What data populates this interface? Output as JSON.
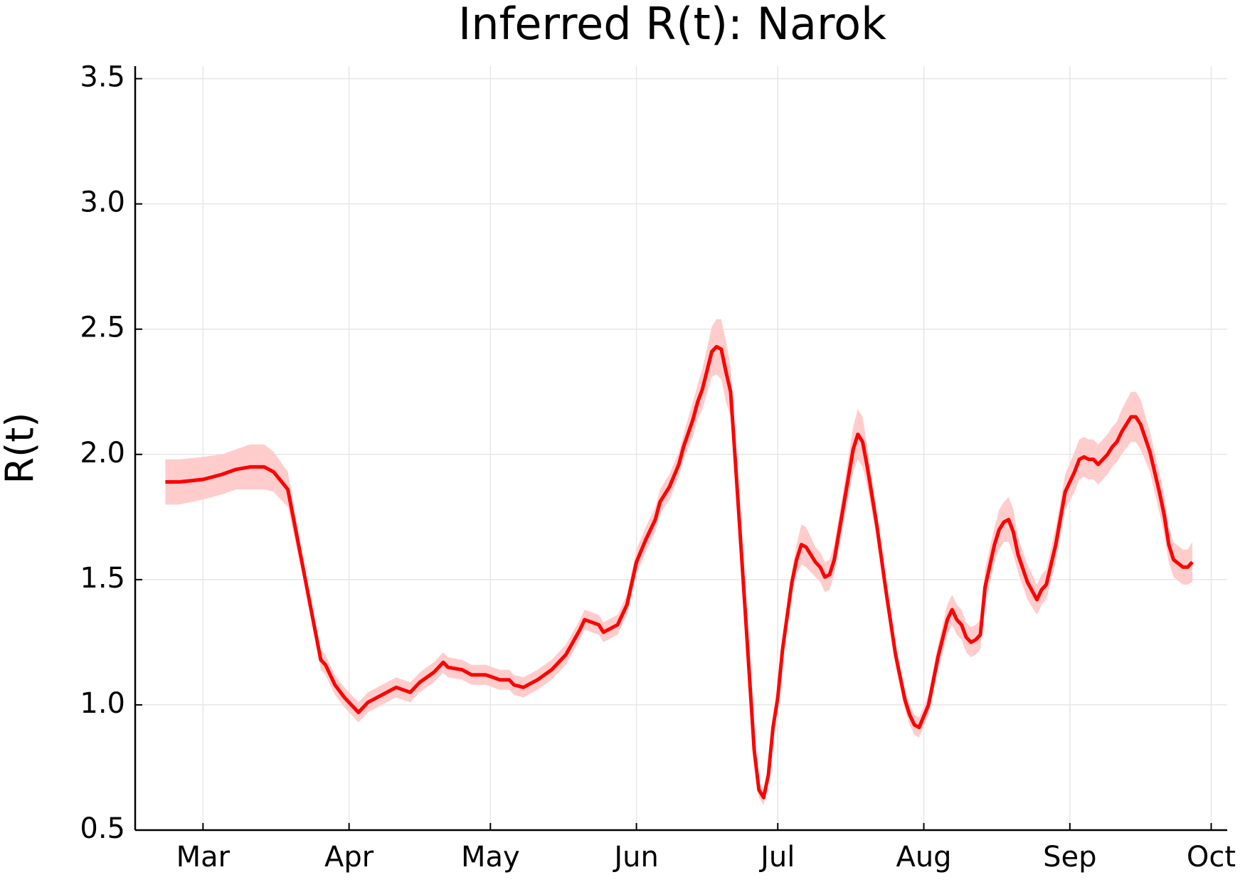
{
  "chart_data": {
    "type": "line-band",
    "title": "Inferred R(t): Narok",
    "y_label": "R(t)",
    "color": "#ff0000",
    "band_color": "#ffcccc",
    "grid": true,
    "xlim": [
      -14.4,
      217.4
    ],
    "ylim": [
      0.5,
      3.55
    ],
    "xticks": [
      {
        "value": 0,
        "label": "Mar"
      },
      {
        "value": 31,
        "label": "Apr"
      },
      {
        "value": 61,
        "label": "May"
      },
      {
        "value": 92,
        "label": "Jun"
      },
      {
        "value": 122,
        "label": "Jul"
      },
      {
        "value": 153,
        "label": "Aug"
      },
      {
        "value": 184,
        "label": "Sep"
      },
      {
        "value": 214,
        "label": "Oct"
      }
    ],
    "yticks": [
      0.5,
      {
        "value": 1,
        "label": "1.0"
      },
      1.5,
      {
        "value": 2,
        "label": "2.0"
      },
      2.5,
      {
        "value": 3,
        "label": "3.0"
      },
      3.5
    ],
    "x": [
      -8,
      -5,
      0,
      4,
      7,
      10,
      13,
      15,
      18,
      21,
      25,
      26,
      28,
      30,
      32,
      33,
      35,
      38,
      41,
      44,
      46,
      49,
      51,
      52,
      55,
      57,
      60,
      63,
      65,
      66,
      68,
      71,
      74,
      77,
      80,
      81,
      84,
      85,
      88,
      90,
      92,
      94,
      96,
      97,
      99,
      101,
      102,
      104,
      105,
      106,
      108,
      109,
      110,
      111,
      112,
      113,
      115,
      117,
      118,
      119,
      120,
      121,
      122,
      123,
      125,
      126,
      127,
      128,
      130,
      131,
      132,
      133,
      134,
      136,
      138,
      139,
      140,
      141,
      143,
      145,
      147,
      149,
      150,
      151,
      152,
      154,
      156,
      158,
      159,
      160,
      161,
      162,
      163,
      164,
      165,
      166,
      168,
      169,
      170,
      171,
      172,
      173,
      175,
      177,
      178,
      179,
      181,
      183,
      185,
      186,
      187,
      188,
      189,
      190,
      191,
      192,
      193,
      194,
      195,
      197,
      198,
      199,
      201,
      203,
      204,
      205,
      206,
      208,
      209,
      210
    ],
    "values": [
      1.89,
      1.89,
      1.9,
      1.92,
      1.94,
      1.95,
      1.95,
      1.93,
      1.86,
      1.57,
      1.18,
      1.16,
      1.08,
      1.03,
      0.99,
      0.97,
      1.01,
      1.04,
      1.07,
      1.05,
      1.09,
      1.13,
      1.17,
      1.15,
      1.14,
      1.12,
      1.12,
      1.1,
      1.1,
      1.08,
      1.07,
      1.1,
      1.14,
      1.2,
      1.3,
      1.34,
      1.32,
      1.29,
      1.32,
      1.4,
      1.57,
      1.66,
      1.74,
      1.81,
      1.87,
      1.96,
      2.03,
      2.14,
      2.21,
      2.26,
      2.41,
      2.43,
      2.42,
      2.33,
      2.25,
      1.97,
      1.4,
      0.82,
      0.66,
      0.63,
      0.72,
      0.91,
      1.03,
      1.22,
      1.49,
      1.58,
      1.64,
      1.63,
      1.57,
      1.55,
      1.51,
      1.52,
      1.58,
      1.8,
      2.02,
      2.08,
      2.05,
      1.95,
      1.72,
      1.45,
      1.2,
      1.02,
      0.96,
      0.92,
      0.91,
      1.0,
      1.19,
      1.34,
      1.38,
      1.34,
      1.32,
      1.27,
      1.25,
      1.26,
      1.28,
      1.47,
      1.64,
      1.7,
      1.73,
      1.74,
      1.69,
      1.6,
      1.49,
      1.42,
      1.46,
      1.48,
      1.64,
      1.85,
      1.93,
      1.98,
      1.99,
      1.98,
      1.98,
      1.96,
      1.98,
      2.0,
      2.03,
      2.05,
      2.09,
      2.15,
      2.15,
      2.12,
      2.01,
      1.85,
      1.76,
      1.64,
      1.58,
      1.55,
      1.55,
      1.57
    ],
    "lower": [
      1.8,
      1.8,
      1.82,
      1.84,
      1.86,
      1.86,
      1.86,
      1.85,
      1.79,
      1.53,
      1.14,
      1.12,
      1.04,
      0.99,
      0.95,
      0.93,
      0.97,
      1.0,
      1.03,
      1.01,
      1.05,
      1.09,
      1.13,
      1.11,
      1.1,
      1.08,
      1.08,
      1.06,
      1.06,
      1.04,
      1.03,
      1.06,
      1.1,
      1.16,
      1.26,
      1.3,
      1.28,
      1.25,
      1.28,
      1.36,
      1.52,
      1.61,
      1.69,
      1.76,
      1.82,
      1.91,
      1.98,
      2.07,
      2.14,
      2.18,
      2.31,
      2.32,
      2.3,
      2.21,
      2.15,
      1.91,
      1.37,
      0.79,
      0.63,
      0.6,
      0.69,
      0.88,
      1.0,
      1.19,
      1.45,
      1.52,
      1.56,
      1.55,
      1.51,
      1.49,
      1.45,
      1.46,
      1.52,
      1.73,
      1.93,
      1.98,
      1.95,
      1.87,
      1.67,
      1.41,
      1.16,
      0.98,
      0.92,
      0.88,
      0.87,
      0.96,
      1.14,
      1.28,
      1.32,
      1.28,
      1.26,
      1.21,
      1.19,
      1.2,
      1.22,
      1.4,
      1.57,
      1.62,
      1.65,
      1.65,
      1.6,
      1.53,
      1.42,
      1.36,
      1.4,
      1.42,
      1.57,
      1.78,
      1.85,
      1.9,
      1.91,
      1.9,
      1.9,
      1.88,
      1.9,
      1.92,
      1.95,
      1.97,
      2.0,
      2.05,
      2.05,
      2.02,
      1.93,
      1.77,
      1.68,
      1.57,
      1.51,
      1.48,
      1.48,
      1.49
    ],
    "upper": [
      1.98,
      1.98,
      1.99,
      2.0,
      2.02,
      2.04,
      2.04,
      2.01,
      1.93,
      1.61,
      1.22,
      1.2,
      1.12,
      1.07,
      1.03,
      1.01,
      1.05,
      1.08,
      1.11,
      1.09,
      1.13,
      1.17,
      1.21,
      1.19,
      1.18,
      1.16,
      1.16,
      1.14,
      1.14,
      1.12,
      1.11,
      1.14,
      1.18,
      1.24,
      1.34,
      1.38,
      1.36,
      1.33,
      1.36,
      1.44,
      1.62,
      1.71,
      1.79,
      1.86,
      1.92,
      2.01,
      2.08,
      2.21,
      2.28,
      2.34,
      2.51,
      2.54,
      2.54,
      2.45,
      2.35,
      2.03,
      1.43,
      0.85,
      0.69,
      0.66,
      0.75,
      0.94,
      1.06,
      1.25,
      1.53,
      1.64,
      1.72,
      1.71,
      1.63,
      1.61,
      1.57,
      1.58,
      1.64,
      1.87,
      2.11,
      2.18,
      2.15,
      2.03,
      1.77,
      1.49,
      1.24,
      1.06,
      1.0,
      0.96,
      0.95,
      1.04,
      1.24,
      1.4,
      1.44,
      1.4,
      1.38,
      1.33,
      1.31,
      1.32,
      1.34,
      1.54,
      1.71,
      1.78,
      1.81,
      1.83,
      1.78,
      1.67,
      1.56,
      1.48,
      1.52,
      1.54,
      1.71,
      1.92,
      2.01,
      2.06,
      2.07,
      2.06,
      2.06,
      2.04,
      2.06,
      2.08,
      2.11,
      2.13,
      2.18,
      2.25,
      2.25,
      2.22,
      2.09,
      1.93,
      1.84,
      1.71,
      1.65,
      1.62,
      1.62,
      1.65
    ]
  }
}
